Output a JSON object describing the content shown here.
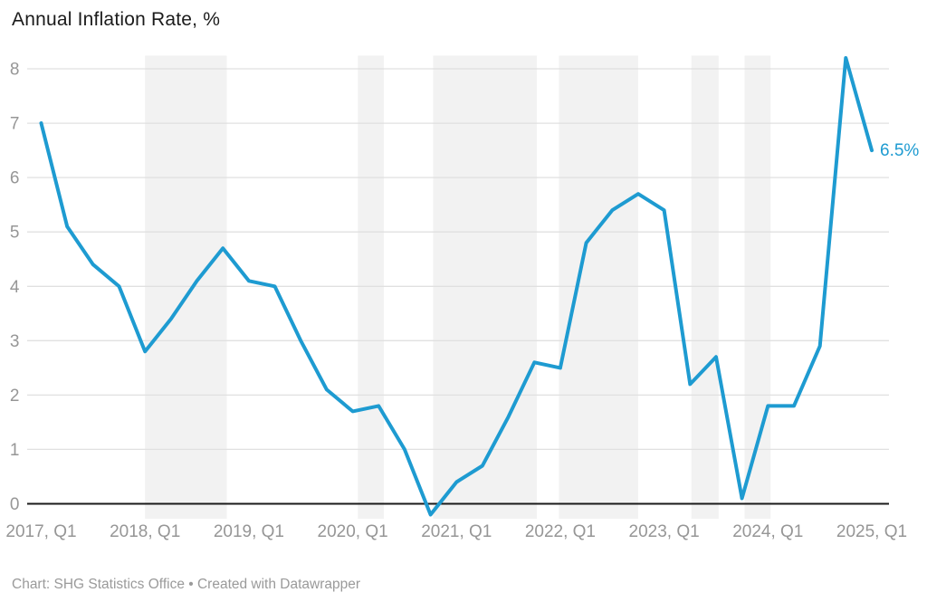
{
  "header": {
    "title": "Annual Inflation Rate, %"
  },
  "footer": {
    "attribution": "Chart: SHG Statistics Office • Created with Datawrapper"
  },
  "chart_data": {
    "type": "line",
    "title": "Annual Inflation Rate, %",
    "xlabel": "",
    "ylabel": "",
    "x": [
      "2017 Q1",
      "2017 Q2",
      "2017 Q3",
      "2017 Q4",
      "2018 Q1",
      "2018 Q2",
      "2018 Q3",
      "2018 Q4",
      "2019 Q1",
      "2019 Q2",
      "2019 Q3",
      "2019 Q4",
      "2020 Q1",
      "2020 Q2",
      "2020 Q3",
      "2020 Q4",
      "2021 Q1",
      "2021 Q2",
      "2021 Q3",
      "2021 Q4",
      "2022 Q1",
      "2022 Q2",
      "2022 Q3",
      "2022 Q4",
      "2023 Q1",
      "2023 Q2",
      "2023 Q3",
      "2023 Q4",
      "2024 Q1",
      "2024 Q2",
      "2024 Q3",
      "2024 Q4",
      "2025 Q1"
    ],
    "values": [
      7.0,
      5.1,
      4.4,
      4.0,
      2.8,
      3.4,
      4.1,
      4.7,
      4.1,
      4.0,
      3.0,
      2.1,
      1.7,
      1.8,
      1.0,
      -0.2,
      0.4,
      0.7,
      1.6,
      2.6,
      2.5,
      4.8,
      5.4,
      5.7,
      5.4,
      2.2,
      2.7,
      0.1,
      1.8,
      1.8,
      2.9,
      8.2,
      6.5
    ],
    "end_label": "6.5%",
    "x_ticks": [
      {
        "index": 0,
        "label": "2017, Q1"
      },
      {
        "index": 4,
        "label": "2018, Q1"
      },
      {
        "index": 8,
        "label": "2019, Q1"
      },
      {
        "index": 12,
        "label": "2020, Q1"
      },
      {
        "index": 16,
        "label": "2021, Q1"
      },
      {
        "index": 20,
        "label": "2022, Q1"
      },
      {
        "index": 24,
        "label": "2023, Q1"
      },
      {
        "index": 28,
        "label": "2024, Q1"
      },
      {
        "index": 32,
        "label": "2025, Q1"
      }
    ],
    "y_ticks": [
      0,
      1,
      2,
      3,
      4,
      5,
      6,
      7,
      8
    ],
    "ylim": [
      -0.3,
      8.4
    ],
    "grid": "horizontal",
    "legend_position": "none",
    "highlight_bands": [
      {
        "from": 4.0,
        "to": 7.15
      },
      {
        "from": 12.2,
        "to": 13.2
      },
      {
        "from": 15.1,
        "to": 19.1
      },
      {
        "from": 19.95,
        "to": 23.0
      },
      {
        "from": 25.05,
        "to": 26.1
      },
      {
        "from": 27.1,
        "to": 28.1
      }
    ],
    "colors": {
      "line": "#1E9BD1",
      "end_label": "#1E9BD1",
      "band": "#F2F2F2",
      "gridline": "#E0E0E0",
      "zero_axis": "#1A1A1A",
      "tick_label": "#969696",
      "title": "#1B1B1B",
      "footer": "#9A9A9A"
    }
  }
}
